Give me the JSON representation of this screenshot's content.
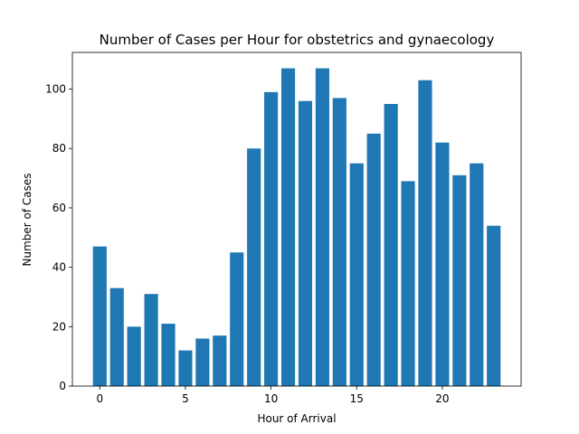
{
  "chart_data": {
    "type": "bar",
    "title": "Number of Cases per Hour for obstetrics and gynaecology",
    "xlabel": "Hour of Arrival",
    "ylabel": "Number of Cases",
    "categories": [
      0,
      1,
      2,
      3,
      4,
      5,
      6,
      7,
      8,
      9,
      10,
      11,
      12,
      13,
      14,
      15,
      16,
      17,
      18,
      19,
      20,
      21,
      22,
      23
    ],
    "values": [
      47,
      33,
      20,
      31,
      21,
      12,
      16,
      17,
      45,
      80,
      99,
      107,
      96,
      107,
      97,
      75,
      85,
      95,
      69,
      103,
      82,
      71,
      75,
      54
    ],
    "xlim": [
      -1.6,
      24.6
    ],
    "ylim": [
      0,
      112.35
    ],
    "xticks": [
      0,
      5,
      10,
      15,
      20
    ],
    "yticks": [
      0,
      20,
      40,
      60,
      80,
      100
    ],
    "bar_color": "#1f77b4",
    "grid": false,
    "legend": false
  }
}
